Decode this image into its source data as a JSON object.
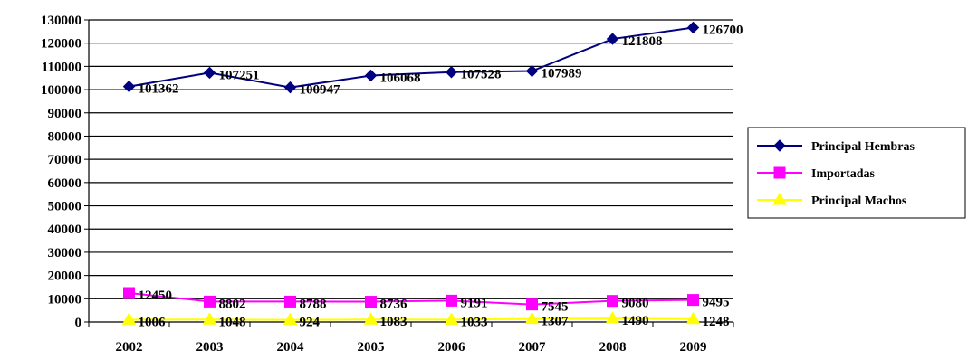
{
  "chart_data": {
    "type": "line",
    "categories": [
      "2002",
      "2003",
      "2004",
      "2005",
      "2006",
      "2007",
      "2008",
      "2009"
    ],
    "ylim": [
      0,
      130000
    ],
    "yticks": [
      0,
      10000,
      20000,
      30000,
      40000,
      50000,
      60000,
      70000,
      80000,
      90000,
      100000,
      110000,
      120000,
      130000
    ],
    "ytick_labels": [
      "0",
      "10000",
      "20000",
      "30000",
      "40000",
      "50000",
      "60000",
      "70000",
      "80000",
      "90000",
      "100000",
      "110000",
      "120000",
      "130000"
    ],
    "grid": true,
    "legend_position": "right",
    "series": [
      {
        "name": "Principal Hembras",
        "color": "#000080",
        "marker": "diamond",
        "values": [
          101362,
          107251,
          100947,
          106068,
          107528,
          107989,
          121808,
          126700
        ],
        "labels": [
          "101362",
          "107251",
          "100947",
          "106068",
          "107528",
          "107989",
          "121808",
          "126700"
        ]
      },
      {
        "name": "Importadas",
        "color": "#ff00ff",
        "marker": "square",
        "values": [
          12450,
          8802,
          8788,
          8736,
          9191,
          7545,
          9080,
          9495
        ],
        "labels": [
          "12450",
          "8802",
          "8788",
          "8736",
          "9191",
          "7545",
          "9080",
          "9495"
        ]
      },
      {
        "name": "Principal Machos",
        "color": "#ffff00",
        "marker": "triangle",
        "values": [
          1006,
          1048,
          924,
          1083,
          1033,
          1307,
          1490,
          1248
        ],
        "labels": [
          "1006",
          "1048",
          "924",
          "1083",
          "1033",
          "1307",
          "1490",
          "1248"
        ]
      }
    ]
  }
}
